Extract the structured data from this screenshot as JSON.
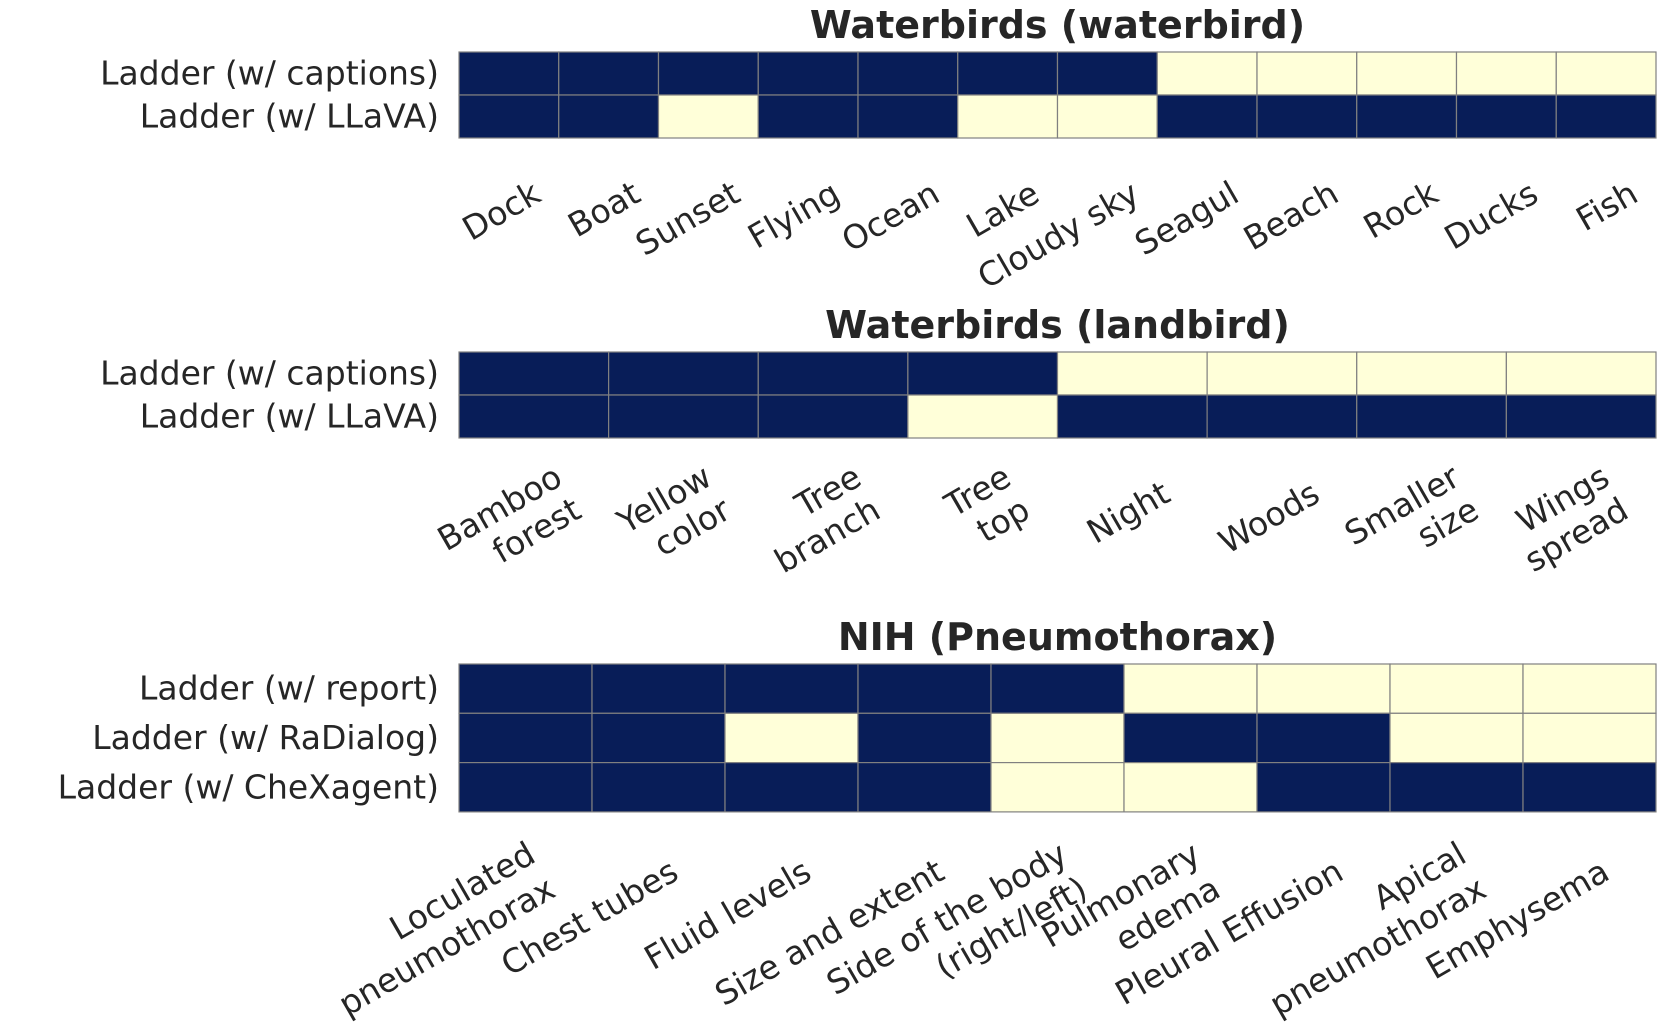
{
  "colors": {
    "present": "#081d58",
    "absent": "#ffffd9",
    "grid": "#808080"
  },
  "chart_data": [
    {
      "type": "heatmap",
      "title": "Waterbirds (waterbird)",
      "rows": [
        "Ladder (w/ captions)",
        "Ladder (w/ LLaVA)"
      ],
      "columns": [
        "Dock",
        "Boat",
        "Sunset",
        "Flying",
        "Ocean",
        "Lake",
        "Cloudy sky",
        "Seagul",
        "Beach",
        "Rock",
        "Ducks",
        "Fish"
      ],
      "values": [
        [
          1,
          1,
          1,
          1,
          1,
          1,
          1,
          0,
          0,
          0,
          0,
          0
        ],
        [
          1,
          1,
          0,
          1,
          1,
          0,
          0,
          1,
          1,
          1,
          1,
          1
        ]
      ]
    },
    {
      "type": "heatmap",
      "title": "Waterbirds (landbird)",
      "rows": [
        "Ladder (w/ captions)",
        "Ladder (w/ LLaVA)"
      ],
      "columns": [
        "Bamboo\nforest",
        "Yellow\ncolor",
        "Tree\nbranch",
        "Tree\ntop",
        "Night",
        "Woods",
        "Smaller\nsize",
        "Wings\nspread"
      ],
      "values": [
        [
          1,
          1,
          1,
          1,
          0,
          0,
          0,
          0
        ],
        [
          1,
          1,
          1,
          0,
          1,
          1,
          1,
          1
        ]
      ]
    },
    {
      "type": "heatmap",
      "title": "NIH (Pneumothorax)",
      "rows": [
        "Ladder (w/ report)",
        "Ladder (w/ RaDialog)",
        "Ladder (w/ CheXagent)"
      ],
      "columns": [
        "Loculated\npneumothorax",
        "Chest tubes",
        "Fluid levels",
        "Size and extent",
        "Side of the body\n(right/left)",
        "Pulmonary\nedema",
        "Pleural Effusion",
        "Apical\npneumothorax",
        "Emphysema"
      ],
      "values": [
        [
          1,
          1,
          1,
          1,
          1,
          0,
          0,
          0,
          0
        ],
        [
          1,
          1,
          0,
          1,
          0,
          1,
          1,
          0,
          0
        ],
        [
          1,
          1,
          1,
          1,
          0,
          0,
          1,
          1,
          1
        ]
      ]
    }
  ]
}
